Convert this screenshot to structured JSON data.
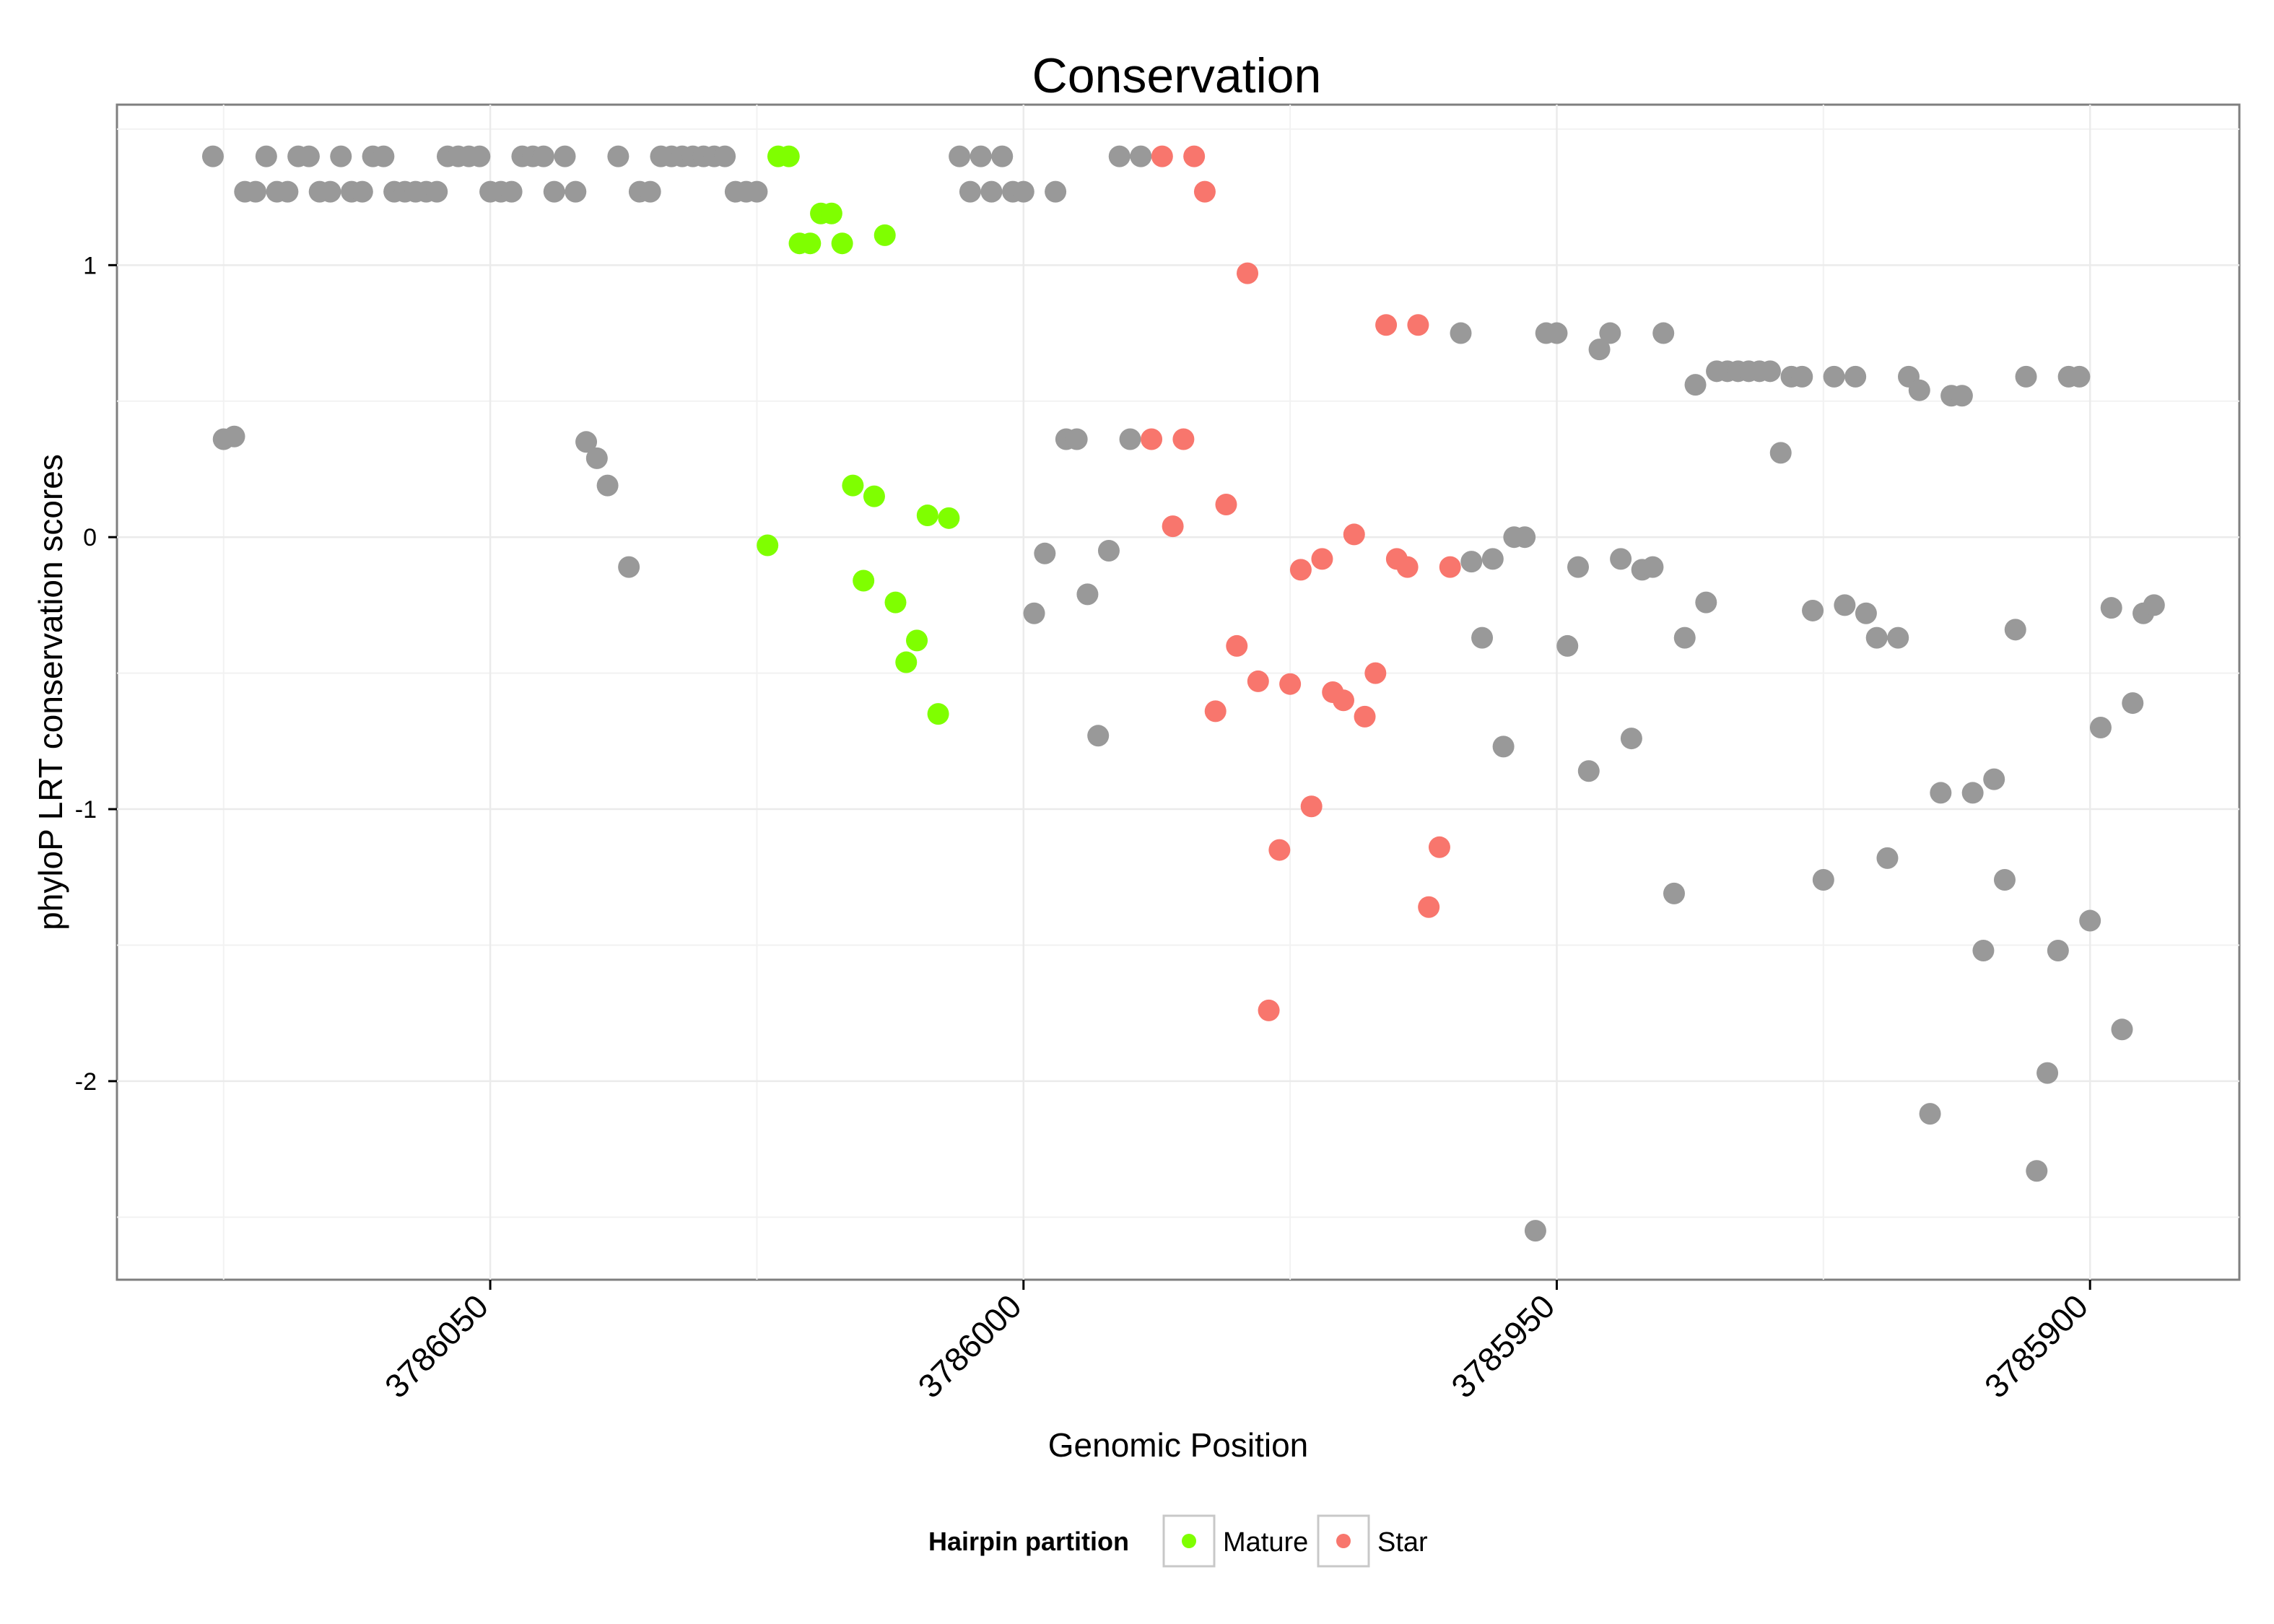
{
  "chart_data": {
    "type": "scatter",
    "title": "Conservation",
    "xlabel": "Genomic Position",
    "ylabel": "phyloP LRT conservation scores",
    "x_reversed": true,
    "xlim": [
      3786085,
      3785886
    ],
    "ylim": [
      -2.73,
      1.59
    ],
    "x_ticks": [
      3786050,
      3786000,
      3785950,
      3785900
    ],
    "x_tick_labels": [
      "3786050",
      "3786000",
      "3785950",
      "3785900"
    ],
    "y_ticks": [
      1,
      0,
      -1,
      -2
    ],
    "y_tick_labels": [
      "1",
      "0",
      "-1",
      "-2"
    ],
    "grid": true,
    "legend": {
      "title": "Hairpin partition",
      "position": "bottom",
      "entries": [
        {
          "label": "Mature",
          "color": "#7fff00"
        },
        {
          "label": "Star",
          "color": "#f8766d"
        }
      ]
    },
    "colors": {
      "Other": "#999999",
      "Mature": "#7fff00",
      "Star": "#f8766d"
    },
    "series": [
      {
        "name": "Other",
        "points": [
          [
            3786076,
            1.4
          ],
          [
            3786075,
            0.36
          ],
          [
            3786074,
            0.37
          ],
          [
            3786073,
            1.27
          ],
          [
            3786072,
            1.27
          ],
          [
            3786071,
            1.4
          ],
          [
            3786070,
            1.27
          ],
          [
            3786069,
            1.27
          ],
          [
            3786068,
            1.4
          ],
          [
            3786067,
            1.4
          ],
          [
            3786066,
            1.27
          ],
          [
            3786065,
            1.27
          ],
          [
            3786064,
            1.4
          ],
          [
            3786063,
            1.27
          ],
          [
            3786062,
            1.27
          ],
          [
            3786061,
            1.4
          ],
          [
            3786060,
            1.4
          ],
          [
            3786059,
            1.27
          ],
          [
            3786058,
            1.27
          ],
          [
            3786057,
            1.27
          ],
          [
            3786056,
            1.27
          ],
          [
            3786055,
            1.27
          ],
          [
            3786054,
            1.4
          ],
          [
            3786053,
            1.4
          ],
          [
            3786052,
            1.4
          ],
          [
            3786051,
            1.4
          ],
          [
            3786050,
            1.27
          ],
          [
            3786049,
            1.27
          ],
          [
            3786048,
            1.27
          ],
          [
            3786047,
            1.4
          ],
          [
            3786046,
            1.4
          ],
          [
            3786045,
            1.4
          ],
          [
            3786044,
            1.27
          ],
          [
            3786043,
            1.4
          ],
          [
            3786042,
            1.27
          ],
          [
            3786041,
            0.35
          ],
          [
            3786040,
            0.29
          ],
          [
            3786039,
            0.19
          ],
          [
            3786038,
            1.4
          ],
          [
            3786037,
            -0.11
          ],
          [
            3786036,
            1.27
          ],
          [
            3786035,
            1.27
          ],
          [
            3786034,
            1.4
          ],
          [
            3786033,
            1.4
          ],
          [
            3786032,
            1.4
          ],
          [
            3786031,
            1.4
          ],
          [
            3786030,
            1.4
          ],
          [
            3786029,
            1.4
          ],
          [
            3786028,
            1.4
          ],
          [
            3786027,
            1.27
          ],
          [
            3786026,
            1.27
          ],
          [
            3786025,
            1.27
          ],
          [
            3786006,
            1.4
          ],
          [
            3786005,
            1.27
          ],
          [
            3786004,
            1.4
          ],
          [
            3786003,
            1.27
          ],
          [
            3786002,
            1.4
          ],
          [
            3786001,
            1.27
          ],
          [
            3786000,
            1.27
          ],
          [
            3785999,
            -0.28
          ],
          [
            3785998,
            -0.06
          ],
          [
            3785997,
            1.27
          ],
          [
            3785996,
            0.36
          ],
          [
            3785995,
            0.36
          ],
          [
            3785994,
            -0.21
          ],
          [
            3785993,
            -0.73
          ],
          [
            3785992,
            -0.05
          ],
          [
            3785991,
            1.4
          ],
          [
            3785990,
            0.36
          ],
          [
            3785989,
            1.4
          ],
          [
            3785959,
            0.75
          ],
          [
            3785958,
            -0.09
          ],
          [
            3785957,
            -0.37
          ],
          [
            3785956,
            -0.08
          ],
          [
            3785955,
            -0.77
          ],
          [
            3785954,
            0.0
          ],
          [
            3785953,
            0.0
          ],
          [
            3785952,
            -2.55
          ],
          [
            3785951,
            0.75
          ],
          [
            3785950,
            0.75
          ],
          [
            3785949,
            -0.4
          ],
          [
            3785948,
            -0.11
          ],
          [
            3785947,
            -0.86
          ],
          [
            3785946,
            0.69
          ],
          [
            3785945,
            0.75
          ],
          [
            3785944,
            -0.08
          ],
          [
            3785943,
            -0.74
          ],
          [
            3785942,
            -0.12
          ],
          [
            3785941,
            -0.11
          ],
          [
            3785940,
            0.75
          ],
          [
            3785939,
            -1.31
          ],
          [
            3785938,
            -0.37
          ],
          [
            3785937,
            0.56
          ],
          [
            3785936,
            -0.24
          ],
          [
            3785935,
            0.61
          ],
          [
            3785934,
            0.61
          ],
          [
            3785933,
            0.61
          ],
          [
            3785932,
            0.61
          ],
          [
            3785931,
            0.61
          ],
          [
            3785930,
            0.61
          ],
          [
            3785929,
            0.31
          ],
          [
            3785928,
            0.59
          ],
          [
            3785927,
            0.59
          ],
          [
            3785926,
            -0.27
          ],
          [
            3785925,
            -1.26
          ],
          [
            3785924,
            0.59
          ],
          [
            3785923,
            -0.25
          ],
          [
            3785922,
            0.59
          ],
          [
            3785921,
            -0.28
          ],
          [
            3785920,
            -0.37
          ],
          [
            3785919,
            -1.18
          ],
          [
            3785918,
            -0.37
          ],
          [
            3785917,
            0.59
          ],
          [
            3785916,
            0.54
          ],
          [
            3785915,
            -2.12
          ],
          [
            3785914,
            -0.94
          ],
          [
            3785913,
            0.52
          ],
          [
            3785912,
            0.52
          ],
          [
            3785911,
            -0.94
          ],
          [
            3785910,
            -1.52
          ],
          [
            3785909,
            -0.89
          ],
          [
            3785908,
            -1.26
          ],
          [
            3785907,
            -0.34
          ],
          [
            3785906,
            0.59
          ],
          [
            3785905,
            -2.33
          ],
          [
            3785904,
            -1.97
          ],
          [
            3785903,
            -1.52
          ],
          [
            3785902,
            0.59
          ],
          [
            3785901,
            0.59
          ],
          [
            3785900,
            -1.41
          ],
          [
            3785899,
            -0.7
          ],
          [
            3785898,
            -0.26
          ],
          [
            3785897,
            -1.81
          ],
          [
            3785896,
            -0.61
          ],
          [
            3785895,
            -0.28
          ],
          [
            3785894,
            -0.25
          ]
        ]
      },
      {
        "name": "Mature",
        "points": [
          [
            3786024,
            -0.03
          ],
          [
            3786023,
            1.4
          ],
          [
            3786022,
            1.4
          ],
          [
            3786021,
            1.08
          ],
          [
            3786020,
            1.08
          ],
          [
            3786019,
            1.19
          ],
          [
            3786018,
            1.19
          ],
          [
            3786017,
            1.08
          ],
          [
            3786016,
            0.19
          ],
          [
            3786015,
            -0.16
          ],
          [
            3786014,
            0.15
          ],
          [
            3786013,
            1.11
          ],
          [
            3786012,
            -0.24
          ],
          [
            3786011,
            -0.46
          ],
          [
            3786010,
            -0.38
          ],
          [
            3786009,
            0.08
          ],
          [
            3786008,
            -0.65
          ],
          [
            3786007,
            0.07
          ]
        ]
      },
      {
        "name": "Star",
        "points": [
          [
            3785988,
            0.36
          ],
          [
            3785987,
            1.4
          ],
          [
            3785986,
            0.04
          ],
          [
            3785985,
            0.36
          ],
          [
            3785984,
            1.4
          ],
          [
            3785983,
            1.27
          ],
          [
            3785982,
            -0.64
          ],
          [
            3785981,
            0.12
          ],
          [
            3785980,
            -0.4
          ],
          [
            3785979,
            0.97
          ],
          [
            3785978,
            -0.53
          ],
          [
            3785977,
            -1.74
          ],
          [
            3785976,
            -1.15
          ],
          [
            3785975,
            -0.54
          ],
          [
            3785974,
            -0.12
          ],
          [
            3785973,
            -0.99
          ],
          [
            3785972,
            -0.08
          ],
          [
            3785971,
            -0.57
          ],
          [
            3785970,
            -0.6
          ],
          [
            3785969,
            0.01
          ],
          [
            3785968,
            -0.66
          ],
          [
            3785967,
            -0.5
          ],
          [
            3785966,
            0.78
          ],
          [
            3785965,
            -0.08
          ],
          [
            3785964,
            -0.11
          ],
          [
            3785963,
            0.78
          ],
          [
            3785962,
            -1.36
          ],
          [
            3785961,
            -1.14
          ],
          [
            3785960,
            -0.11
          ]
        ]
      }
    ]
  }
}
